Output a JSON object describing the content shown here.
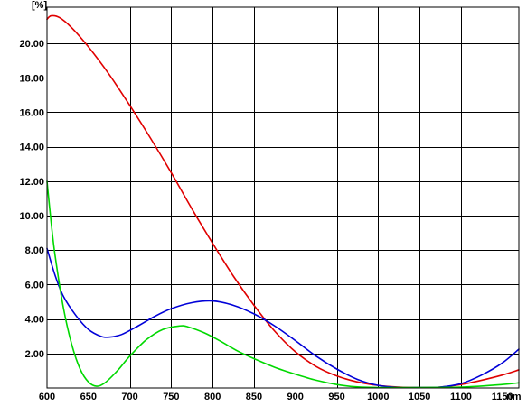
{
  "chart_data": {
    "type": "line",
    "ylabel": "[%]",
    "xlabel": "nm",
    "xlim": [
      600,
      1170
    ],
    "ylim": [
      0,
      22.1
    ],
    "x_ticks": [
      600,
      650,
      700,
      750,
      800,
      850,
      900,
      950,
      1000,
      1050,
      1100,
      1150
    ],
    "x_tick_labels": [
      "600",
      "650",
      "700",
      "750",
      "800",
      "850",
      "900",
      "950",
      "1000",
      "1050",
      "1100",
      "1150"
    ],
    "y_ticks": [
      2,
      4,
      6,
      8,
      10,
      12,
      14,
      16,
      18,
      20
    ],
    "y_tick_labels": [
      "2.00",
      "4.00",
      "6.00",
      "8.00",
      "10.00",
      "12.00",
      "14.00",
      "16.00",
      "18.00",
      "20.00"
    ],
    "grid": true,
    "series": [
      {
        "color": "#e00000",
        "x": [
          600,
          605,
          615,
          630,
          650,
          675,
          700,
          725,
          750,
          775,
          800,
          825,
          850,
          875,
          900,
          925,
          950,
          975,
          1000,
          1025,
          1050,
          1075,
          1100,
          1125,
          1150,
          1170
        ],
        "y": [
          21.4,
          21.6,
          21.5,
          20.9,
          19.8,
          18.2,
          16.4,
          14.5,
          12.5,
          10.4,
          8.4,
          6.5,
          4.8,
          3.3,
          2.1,
          1.25,
          0.7,
          0.35,
          0.15,
          0.05,
          0.02,
          0.05,
          0.2,
          0.45,
          0.75,
          1.05
        ]
      },
      {
        "color": "#0000d8",
        "x": [
          600,
          610,
          620,
          635,
          650,
          665,
          675,
          690,
          710,
          730,
          750,
          775,
          800,
          825,
          850,
          875,
          900,
          925,
          950,
          975,
          1000,
          1025,
          1050,
          1075,
          1100,
          1125,
          1150,
          1170
        ],
        "y": [
          8.1,
          6.5,
          5.3,
          4.2,
          3.4,
          3.0,
          2.95,
          3.1,
          3.6,
          4.15,
          4.6,
          4.95,
          5.05,
          4.8,
          4.3,
          3.6,
          2.75,
          1.85,
          1.1,
          0.5,
          0.15,
          0.02,
          0.0,
          0.05,
          0.25,
          0.75,
          1.45,
          2.25
        ]
      },
      {
        "color": "#00d800",
        "x": [
          600,
          605,
          610,
          620,
          630,
          640,
          650,
          660,
          670,
          685,
          700,
          720,
          740,
          760,
          770,
          790,
          810,
          830,
          850,
          875,
          900,
          925,
          950,
          975,
          1000,
          1050,
          1100,
          1150,
          1170
        ],
        "y": [
          12.0,
          9.6,
          7.6,
          4.6,
          2.5,
          1.1,
          0.35,
          0.1,
          0.3,
          1.0,
          1.85,
          2.8,
          3.4,
          3.6,
          3.55,
          3.2,
          2.7,
          2.15,
          1.7,
          1.2,
          0.8,
          0.45,
          0.2,
          0.06,
          0.0,
          0.0,
          0.05,
          0.2,
          0.3
        ]
      }
    ]
  }
}
